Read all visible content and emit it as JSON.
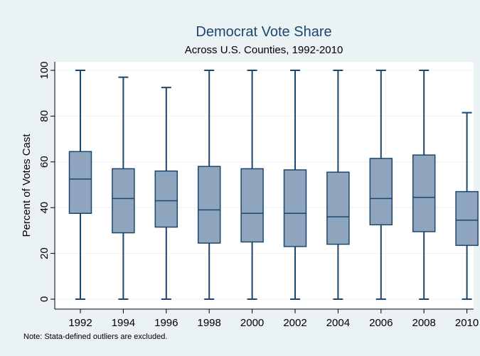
{
  "chart_data": {
    "type": "box",
    "title": "Democrat Vote Share",
    "subtitle": "Across U.S. Counties, 1992-2010",
    "xlabel": "",
    "ylabel": "Percent of Votes Cast",
    "ylim": [
      0,
      100
    ],
    "yticks": [
      0,
      20,
      40,
      60,
      80,
      100
    ],
    "grid": true,
    "legend": "none",
    "note": "Note: Stata-defined outliers are excluded.",
    "categories": [
      "1992",
      "1994",
      "1996",
      "1998",
      "2000",
      "2002",
      "2004",
      "2006",
      "2008",
      "2010"
    ],
    "boxes": [
      {
        "min": 0,
        "q1": 37.5,
        "median": 52.5,
        "q3": 64.5,
        "max": 100
      },
      {
        "min": 0,
        "q1": 29,
        "median": 44,
        "q3": 57,
        "max": 97
      },
      {
        "min": 0,
        "q1": 31.5,
        "median": 43,
        "q3": 56,
        "max": 92.5
      },
      {
        "min": 0,
        "q1": 24.5,
        "median": 39,
        "q3": 58,
        "max": 100
      },
      {
        "min": 0,
        "q1": 25,
        "median": 37.5,
        "q3": 57,
        "max": 100
      },
      {
        "min": 0,
        "q1": 23,
        "median": 37.5,
        "q3": 56.5,
        "max": 100
      },
      {
        "min": 0,
        "q1": 24,
        "median": 36,
        "q3": 55.5,
        "max": 100
      },
      {
        "min": 0,
        "q1": 32.5,
        "median": 44,
        "q3": 61.5,
        "max": 100
      },
      {
        "min": 0,
        "q1": 29.5,
        "median": 44.5,
        "q3": 63,
        "max": 100
      },
      {
        "min": 0,
        "q1": 23.5,
        "median": 34.5,
        "q3": 47,
        "max": 81.5
      }
    ],
    "colors": {
      "background": "#eaf2f3",
      "plot_background": "#ffffff",
      "box_fill": "#8fa5bd",
      "box_stroke": "#1a476f",
      "title": "#1a476f",
      "text": "#000000",
      "grid": "#eaf2f3"
    }
  }
}
